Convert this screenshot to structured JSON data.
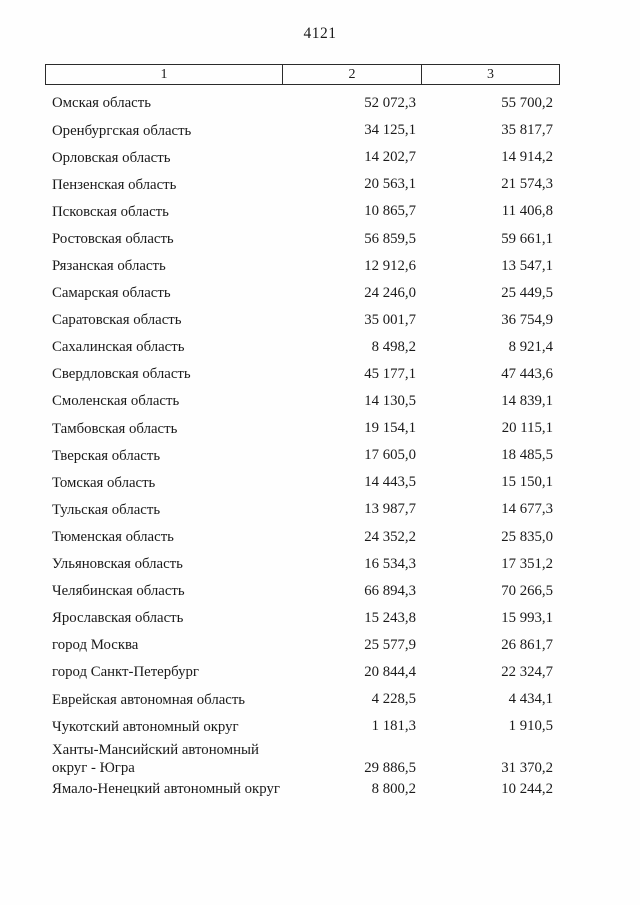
{
  "page": {
    "number": "4121"
  },
  "table": {
    "columns": [
      "1",
      "2",
      "3"
    ],
    "rows": [
      {
        "name": "Омская область",
        "col2": "52 072,3",
        "col3": "55 700,2"
      },
      {
        "name": "Оренбургская область",
        "col2": "34 125,1",
        "col3": "35 817,7"
      },
      {
        "name": "Орловская область",
        "col2": "14 202,7",
        "col3": "14 914,2"
      },
      {
        "name": "Пензенская область",
        "col2": "20 563,1",
        "col3": "21 574,3"
      },
      {
        "name": "Псковская область",
        "col2": "10 865,7",
        "col3": "11 406,8"
      },
      {
        "name": "Ростовская область",
        "col2": "56 859,5",
        "col3": "59 661,1"
      },
      {
        "name": "Рязанская область",
        "col2": "12 912,6",
        "col3": "13 547,1"
      },
      {
        "name": "Самарская область",
        "col2": "24 246,0",
        "col3": "25 449,5"
      },
      {
        "name": "Саратовская область",
        "col2": "35 001,7",
        "col3": "36 754,9"
      },
      {
        "name": "Сахалинская область",
        "col2": "8 498,2",
        "col3": "8 921,4"
      },
      {
        "name": "Свердловская область",
        "col2": "45 177,1",
        "col3": "47 443,6"
      },
      {
        "name": "Смоленская область",
        "col2": "14 130,5",
        "col3": "14 839,1"
      },
      {
        "name": "Тамбовская область",
        "col2": "19 154,1",
        "col3": "20 115,1"
      },
      {
        "name": "Тверская область",
        "col2": "17 605,0",
        "col3": "18 485,5"
      },
      {
        "name": "Томская область",
        "col2": "14 443,5",
        "col3": "15 150,1"
      },
      {
        "name": "Тульская область",
        "col2": "13 987,7",
        "col3": "14 677,3"
      },
      {
        "name": "Тюменская область",
        "col2": "24 352,2",
        "col3": "25 835,0"
      },
      {
        "name": "Ульяновская область",
        "col2": "16 534,3",
        "col3": "17 351,2"
      },
      {
        "name": "Челябинская область",
        "col2": "66 894,3",
        "col3": "70 266,5"
      },
      {
        "name": "Ярославская область",
        "col2": "15 243,8",
        "col3": "15 993,1"
      },
      {
        "name": "город Москва",
        "col2": "25 577,9",
        "col3": "26 861,7"
      },
      {
        "name": "город Санкт-Петербург",
        "col2": "20 844,4",
        "col3": "22 324,7"
      },
      {
        "name": "Еврейская автономная область",
        "col2": "4 228,5",
        "col3": "4 434,1"
      },
      {
        "name": "Чукотский автономный округ",
        "col2": "1 181,3",
        "col3": "1 910,5"
      },
      {
        "name": "Ханты-Мансийский автономный округ - Югра",
        "col2": "29 886,5",
        "col3": "31 370,2",
        "two_line": true
      },
      {
        "name": "Ямало-Ненецкий автономный округ",
        "col2": "8 800,2",
        "col3": "10 244,2",
        "two_line": true
      }
    ]
  }
}
